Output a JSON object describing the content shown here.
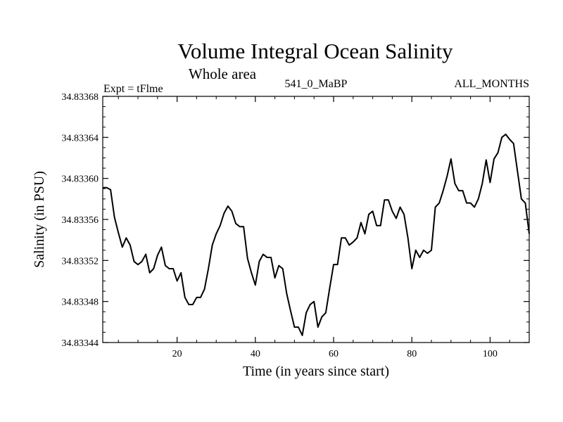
{
  "chart_data": {
    "type": "line",
    "title": "Volume Integral Ocean Salinity",
    "subtitle": "Whole area",
    "expt_label": "Expt = tFlme",
    "run_label": "541_0_MaBP",
    "months_label": "ALL_MONTHS",
    "xlabel": "Time (in years since start)",
    "ylabel": "Salinity (in PSU)",
    "xlim": [
      1,
      110
    ],
    "ylim": [
      34.83344,
      34.83368
    ],
    "xticks": [
      20,
      40,
      60,
      80,
      100
    ],
    "xtick_labels": [
      "20",
      "40",
      "60",
      "80",
      "100"
    ],
    "yticks": [
      34.83344,
      34.83348,
      34.83352,
      34.83356,
      34.8336,
      34.83364,
      34.83368
    ],
    "ytick_labels": [
      "34.83344",
      "34.83348",
      "34.83352",
      "34.83356",
      "34.83360",
      "34.83364",
      "34.83368"
    ],
    "series": [
      {
        "name": "Salinity",
        "color": "#000000",
        "x": [
          1,
          2,
          3,
          4,
          5,
          6,
          7,
          8,
          9,
          10,
          11,
          12,
          13,
          14,
          15,
          16,
          17,
          18,
          19,
          20,
          21,
          22,
          23,
          24,
          25,
          26,
          27,
          28,
          29,
          30,
          31,
          32,
          33,
          34,
          35,
          36,
          37,
          38,
          39,
          40,
          41,
          42,
          43,
          44,
          45,
          46,
          47,
          48,
          49,
          50,
          51,
          52,
          53,
          54,
          55,
          56,
          57,
          58,
          59,
          60,
          61,
          62,
          63,
          64,
          65,
          66,
          67,
          68,
          69,
          70,
          71,
          72,
          73,
          74,
          75,
          76,
          77,
          78,
          79,
          80,
          81,
          82,
          83,
          84,
          85,
          86,
          87,
          88,
          89,
          90,
          91,
          92,
          93,
          94,
          95,
          96,
          97,
          98,
          99,
          100,
          101,
          102,
          103,
          104,
          105,
          106,
          107,
          108,
          109,
          110
        ],
        "values": [
          34.833591,
          34.833591,
          34.833589,
          34.833562,
          34.833547,
          34.833533,
          34.833542,
          34.833535,
          34.833519,
          34.833516,
          34.833519,
          34.833526,
          34.833508,
          34.833512,
          34.833525,
          34.833533,
          34.833515,
          34.833512,
          34.833512,
          34.8335,
          34.833508,
          34.833484,
          34.833477,
          34.833477,
          34.833484,
          34.833484,
          34.833492,
          34.833512,
          34.833535,
          34.833546,
          34.833554,
          34.833566,
          34.833573,
          34.833568,
          34.833556,
          34.833553,
          34.833553,
          34.833522,
          34.833508,
          34.833496,
          34.833519,
          34.833526,
          34.833523,
          34.833523,
          34.833503,
          34.833515,
          34.833512,
          34.833488,
          34.833471,
          34.833455,
          34.833455,
          34.833447,
          34.833469,
          34.833477,
          34.83348,
          34.833455,
          34.833465,
          34.833469,
          34.833493,
          34.833516,
          34.833516,
          34.833542,
          34.833542,
          34.833535,
          34.833538,
          34.833542,
          34.833557,
          34.833546,
          34.833565,
          34.833568,
          34.833554,
          34.833554,
          34.833579,
          34.833579,
          34.833568,
          34.833561,
          34.833572,
          34.833565,
          34.833542,
          34.833512,
          34.83353,
          34.833523,
          34.83353,
          34.833527,
          34.83353,
          34.833572,
          34.833576,
          34.833588,
          34.833602,
          34.833619,
          34.833595,
          34.833588,
          34.833588,
          34.833576,
          34.833576,
          34.833572,
          34.83358,
          34.833595,
          34.833618,
          34.833596,
          34.833619,
          34.833625,
          34.83364,
          34.833643,
          34.833638,
          34.833634,
          34.833607,
          34.83358,
          34.833576,
          34.833546
        ]
      }
    ]
  }
}
